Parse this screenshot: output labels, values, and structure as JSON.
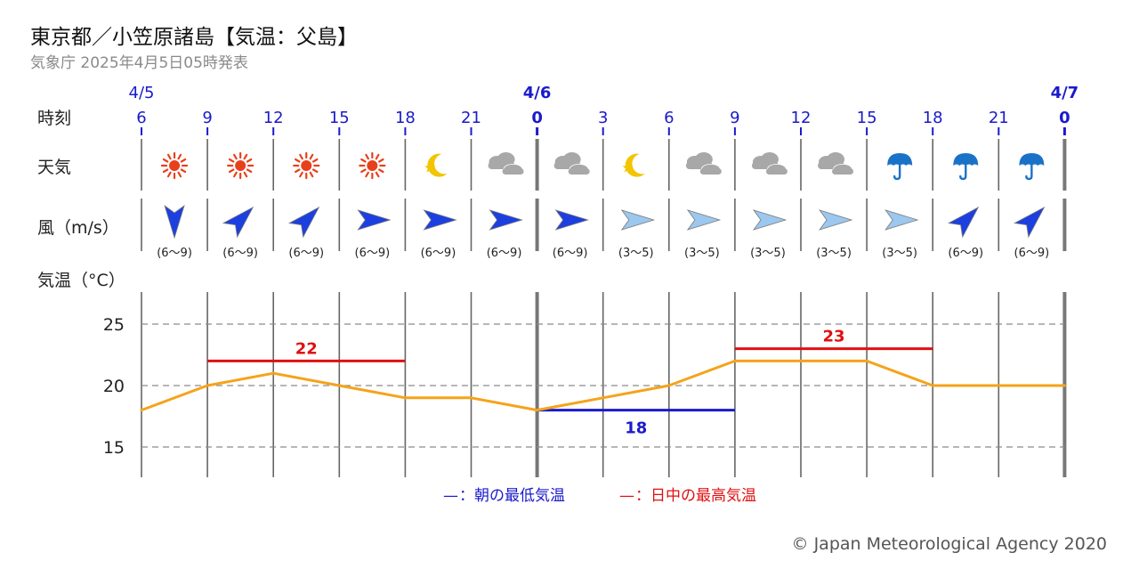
{
  "header": {
    "title": "東京都／小笠原諸島【気温：父島】",
    "subtitle": "気象庁 2025年4月5日05時発表"
  },
  "row_labels": {
    "time": "時刻",
    "weather": "天気",
    "wind": "風（m/s）",
    "temp": "気温（°C）"
  },
  "date_labels": [
    {
      "slot": 0,
      "text": "4/5",
      "bold": false
    },
    {
      "slot": 6,
      "text": "4/6",
      "bold": true
    },
    {
      "slot": 14,
      "text": "4/7",
      "bold": true
    }
  ],
  "hours": [
    "6",
    "9",
    "12",
    "15",
    "18",
    "21",
    "0",
    "3",
    "6",
    "9",
    "12",
    "15",
    "18",
    "21",
    "0"
  ],
  "weather": [
    "sun-icon",
    "sun-icon",
    "sun-icon",
    "sun-icon",
    "moon-icon",
    "cloud-icon",
    "cloud-icon",
    "moon-icon",
    "cloud-icon",
    "cloud-icon",
    "cloud-icon",
    "umbrella-icon",
    "umbrella-icon",
    "umbrella-icon"
  ],
  "wind": [
    {
      "dir": "N",
      "speed": "(6〜9)",
      "strong": true
    },
    {
      "dir": "SW",
      "speed": "(6〜9)",
      "strong": true
    },
    {
      "dir": "SW",
      "speed": "(6〜9)",
      "strong": true
    },
    {
      "dir": "W",
      "speed": "(6〜9)",
      "strong": true
    },
    {
      "dir": "W",
      "speed": "(6〜9)",
      "strong": true
    },
    {
      "dir": "W",
      "speed": "(6〜9)",
      "strong": true
    },
    {
      "dir": "W",
      "speed": "(6〜9)",
      "strong": true
    },
    {
      "dir": "W",
      "speed": "(3〜5)",
      "strong": false
    },
    {
      "dir": "W",
      "speed": "(3〜5)",
      "strong": false
    },
    {
      "dir": "W",
      "speed": "(3〜5)",
      "strong": false
    },
    {
      "dir": "W",
      "speed": "(3〜5)",
      "strong": false
    },
    {
      "dir": "W",
      "speed": "(3〜5)",
      "strong": false
    },
    {
      "dir": "SW",
      "speed": "(6〜9)",
      "strong": true
    },
    {
      "dir": "SW",
      "speed": "(6〜9)",
      "strong": true
    }
  ],
  "chart_data": {
    "type": "line",
    "x": [
      "4/5 6",
      "9",
      "12",
      "15",
      "18",
      "21",
      "4/6 0",
      "3",
      "6",
      "9",
      "12",
      "15",
      "18",
      "21",
      "4/7 0"
    ],
    "series": [
      {
        "values": [
          18,
          20,
          21,
          20,
          19,
          19,
          18,
          19,
          20,
          22,
          22,
          22,
          20,
          20,
          20
        ]
      }
    ],
    "yticks": [
      15,
      20,
      25
    ],
    "ylim": [
      13.8,
      27.5
    ],
    "grid": true,
    "min_temp": {
      "label": "18",
      "value": 18,
      "from": 6,
      "to": 9
    },
    "max_temps": [
      {
        "label": "22",
        "value": 22,
        "from": 1,
        "to": 4
      },
      {
        "label": "23",
        "value": 23,
        "from": 9,
        "to": 12
      }
    ],
    "legend": [
      {
        "marker": "—",
        "text": "：朝の最低気温",
        "color": "#1a1acc"
      },
      {
        "marker": "—",
        "text": "：日中の最高気温",
        "color": "#e01010"
      }
    ]
  },
  "colors": {
    "temp_line": "#f5a31a",
    "min_line": "#1a1acc",
    "max_line": "#e01010",
    "max_label": "#e01010",
    "min_label": "#1a1acc",
    "hour_label": "#1a1acc",
    "sun": "#e8401c",
    "moon": "#f2c500",
    "cloud": "#a8a8a8",
    "umbrella": "#1a72c8",
    "wind_strong": "#1c3fe0",
    "wind_weak": "#9cc7ee"
  },
  "footer": {
    "copyright": "© Japan Meteorological Agency 2020"
  }
}
